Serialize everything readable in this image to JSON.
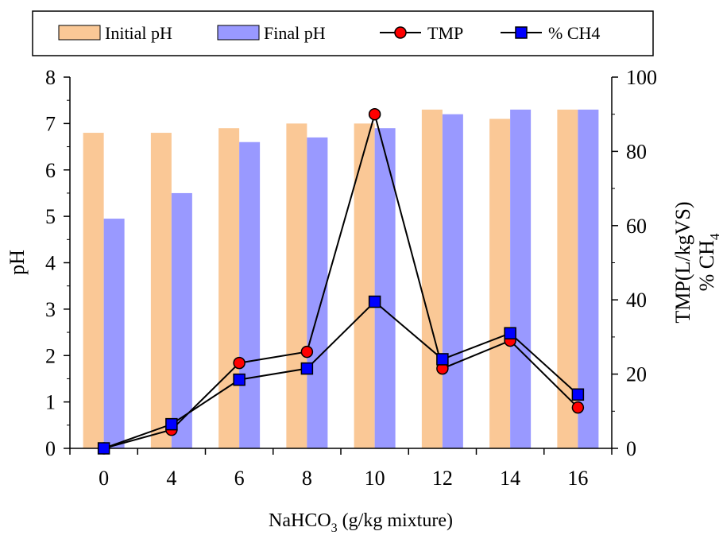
{
  "chart_data": {
    "type": "bar",
    "categories": [
      "0",
      "4",
      "6",
      "8",
      "10",
      "12",
      "14",
      "16"
    ],
    "bar_series": [
      {
        "name": "Initial pH",
        "color": "#FAC896",
        "values": [
          6.8,
          6.8,
          6.9,
          7.0,
          7.0,
          7.3,
          7.1,
          7.3
        ]
      },
      {
        "name": "Final pH",
        "color": "#9999FF",
        "values": [
          4.95,
          5.5,
          6.6,
          6.7,
          6.9,
          7.2,
          7.3,
          7.3
        ]
      }
    ],
    "line_series": [
      {
        "name": "TMP",
        "marker": "circle",
        "color": "#FF0000",
        "values": [
          0,
          5,
          23,
          26,
          90,
          21.5,
          29,
          11
        ]
      },
      {
        "name": "% CH4",
        "marker": "square",
        "color": "#0000FF",
        "values": [
          0,
          6.5,
          18.5,
          21.5,
          39.5,
          24,
          31,
          14.5
        ]
      }
    ],
    "xlabel": {
      "main": "NaHCO",
      "sub": "3",
      "rest": " (g/kg mixture)"
    },
    "ylabel_left": "pH",
    "ylabel_right_1": "TMP(L/kgVS)",
    "ylabel_right_2": {
      "main": "% CH",
      "sub": "4"
    },
    "ylim_left": [
      0,
      8
    ],
    "yticks_left": [
      "0",
      "1",
      "2",
      "3",
      "4",
      "5",
      "6",
      "7",
      "8"
    ],
    "ylim_right": [
      0,
      100
    ],
    "yticks_right": [
      "0",
      "20",
      "40",
      "60",
      "80",
      "100"
    ],
    "grid": false,
    "legend_position": "top"
  }
}
